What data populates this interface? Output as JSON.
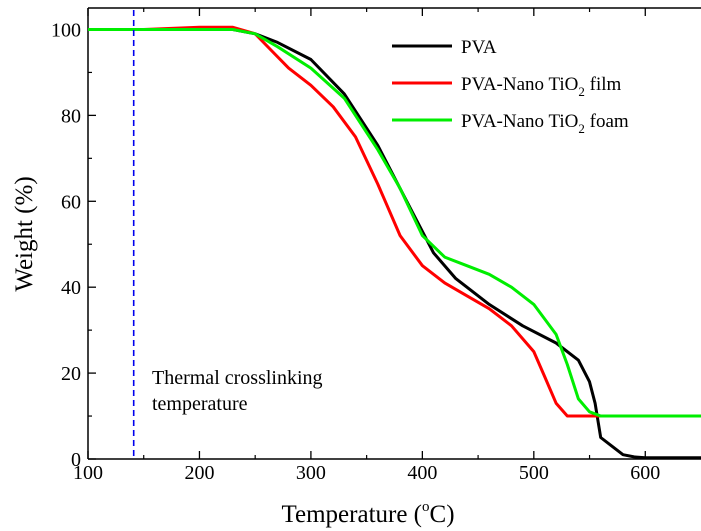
{
  "chart_data": {
    "type": "line",
    "title": "",
    "xlabel": "Temperature (",
    "xlabel_sup": "o",
    "xlabel_suffix": "C)",
    "ylabel": "Weight (%)",
    "xlim": [
      100,
      650
    ],
    "ylim": [
      0,
      105
    ],
    "xticks": [
      100,
      200,
      300,
      400,
      500,
      600
    ],
    "yticks": [
      0,
      20,
      40,
      60,
      80,
      100
    ],
    "grid": false,
    "legend_position": "top-right",
    "series": [
      {
        "name": "PVA",
        "color": "#000000",
        "x": [
          100,
          150,
          200,
          230,
          250,
          270,
          300,
          330,
          360,
          390,
          410,
          430,
          460,
          490,
          520,
          540,
          550,
          555,
          560,
          570,
          580,
          590,
          600,
          650
        ],
        "y": [
          100,
          100,
          100,
          100,
          99,
          97,
          93,
          85,
          73,
          58,
          48,
          42,
          36,
          31,
          27,
          23,
          18,
          13,
          5,
          3,
          1,
          0.5,
          0.3,
          0.3
        ]
      },
      {
        "name": "PVA-Nano TiO2 film",
        "name_base": "PVA-Nano TiO",
        "name_sub": "2",
        "name_suffix": " film",
        "color": "#ff0000",
        "x": [
          100,
          150,
          200,
          230,
          250,
          265,
          280,
          300,
          320,
          340,
          360,
          380,
          400,
          420,
          440,
          460,
          480,
          500,
          510,
          520,
          530,
          540,
          650
        ],
        "y": [
          100,
          100,
          100.5,
          100.5,
          99,
          95,
          91,
          87,
          82,
          75,
          64,
          52,
          45,
          41,
          38,
          35,
          31,
          25,
          19,
          13,
          10,
          10,
          10
        ]
      },
      {
        "name": "PVA-Nano TiO2 foam",
        "name_base": "PVA-Nano TiO",
        "name_sub": "2",
        "name_suffix": " foam",
        "color": "#00ee00",
        "x": [
          100,
          150,
          200,
          230,
          250,
          270,
          300,
          330,
          360,
          380,
          400,
          420,
          440,
          460,
          480,
          500,
          520,
          530,
          540,
          550,
          560,
          650
        ],
        "y": [
          100,
          100,
          100,
          100,
          99,
          96,
          91,
          84,
          72,
          63,
          52,
          47,
          45,
          43,
          40,
          36,
          29,
          22,
          14,
          11,
          10,
          10
        ]
      }
    ],
    "annotations": [
      {
        "type": "vline",
        "x": 141,
        "color": "#0000ee",
        "style": "dashed"
      },
      {
        "type": "text",
        "lines": [
          "Thermal crosslinking",
          "temperature"
        ]
      }
    ]
  }
}
